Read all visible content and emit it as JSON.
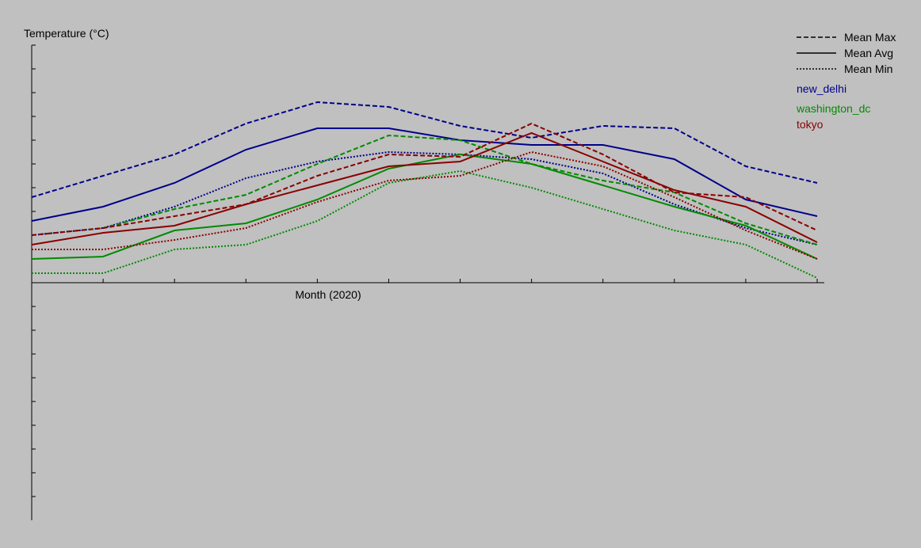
{
  "chart_data": {
    "type": "line",
    "title": "",
    "ylabel": "Temperature (°C)",
    "xlabel": "Month (2020)",
    "x": [
      1,
      2,
      3,
      4,
      5,
      6,
      7,
      8,
      9,
      10,
      11,
      12
    ],
    "xlim": [
      1,
      12.1
    ],
    "ylim": [
      -10,
      10
    ],
    "grid": false,
    "legend_position": "top-right",
    "style_legend": [
      {
        "label": "Mean Max",
        "dash": "dashed"
      },
      {
        "label": "Mean Avg",
        "dash": "solid"
      },
      {
        "label": "Mean Min",
        "dash": "dotted"
      }
    ],
    "series": [
      {
        "name": "new_delhi",
        "color": "#00008b",
        "metric": "max",
        "values": [
          3.6,
          4.5,
          5.4,
          6.7,
          7.6,
          7.4,
          6.6,
          6.1,
          6.6,
          6.5,
          4.9,
          4.2
        ]
      },
      {
        "name": "new_delhi",
        "color": "#00008b",
        "metric": "avg",
        "values": [
          2.6,
          3.2,
          4.2,
          5.6,
          6.5,
          6.5,
          6.0,
          5.8,
          5.8,
          5.2,
          3.5,
          2.8
        ]
      },
      {
        "name": "new_delhi",
        "color": "#00008b",
        "metric": "min",
        "values": [
          2.0,
          2.3,
          3.2,
          4.4,
          5.1,
          5.5,
          5.4,
          5.2,
          4.6,
          3.3,
          2.3,
          1.6
        ]
      },
      {
        "name": "washington_dc",
        "color": "#008b00",
        "metric": "max",
        "values": [
          2.0,
          2.3,
          3.1,
          3.7,
          5.0,
          6.2,
          6.0,
          5.0,
          4.3,
          3.8,
          2.5,
          1.6
        ]
      },
      {
        "name": "washington_dc",
        "color": "#008b00",
        "metric": "avg",
        "values": [
          1.0,
          1.1,
          2.2,
          2.5,
          3.5,
          4.8,
          5.4,
          5.0,
          4.1,
          3.2,
          2.4,
          1.0
        ]
      },
      {
        "name": "washington_dc",
        "color": "#008b00",
        "metric": "min",
        "values": [
          0.4,
          0.4,
          1.4,
          1.6,
          2.6,
          4.2,
          4.7,
          4.0,
          3.1,
          2.2,
          1.6,
          0.2
        ]
      },
      {
        "name": "tokyo",
        "color": "#8b0000",
        "metric": "max",
        "values": [
          2.0,
          2.3,
          2.8,
          3.3,
          4.5,
          5.4,
          5.3,
          6.7,
          5.4,
          3.8,
          3.6,
          2.2
        ]
      },
      {
        "name": "tokyo",
        "color": "#8b0000",
        "metric": "avg",
        "values": [
          1.6,
          2.1,
          2.4,
          3.3,
          4.1,
          4.9,
          5.1,
          6.3,
          5.1,
          3.9,
          3.2,
          1.7
        ]
      },
      {
        "name": "tokyo",
        "color": "#8b0000",
        "metric": "min",
        "values": [
          1.4,
          1.4,
          1.8,
          2.3,
          3.4,
          4.3,
          4.5,
          5.5,
          4.9,
          3.6,
          2.2,
          1.0
        ]
      }
    ]
  }
}
